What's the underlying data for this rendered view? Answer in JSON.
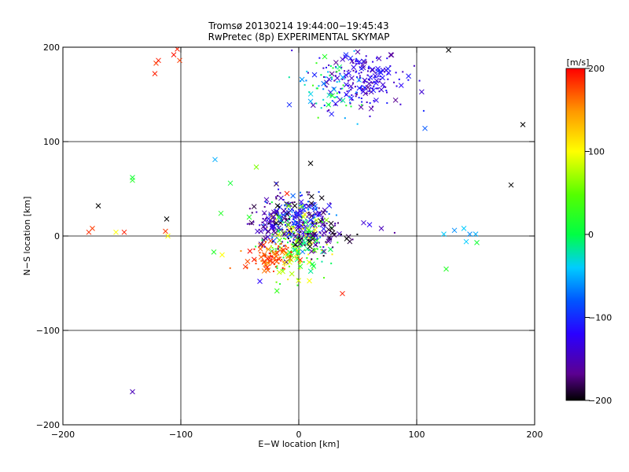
{
  "chart_data": {
    "type": "scatter",
    "title": "Tromsø 20130214 19:44:00−19:45:43",
    "subtitle": "RwPretec (8p) EXPERIMENTAL SKYMAP",
    "xlabel": "E−W location [km]",
    "ylabel": "N−S location [km]",
    "xlim": [
      -200,
      200
    ],
    "ylim": [
      -200,
      200
    ],
    "xticks": [
      -200,
      -100,
      0,
      100,
      200
    ],
    "yticks": [
      -200,
      -100,
      0,
      100,
      200
    ],
    "xtick_labels": [
      "−200",
      "−100",
      "0",
      "100",
      "200"
    ],
    "ytick_labels": [
      "−200",
      "−100",
      "0",
      "100",
      "200"
    ],
    "grid": true,
    "colorbar": {
      "label": "[m/s]",
      "range": [
        -200,
        200
      ],
      "ticks": [
        200,
        100,
        0,
        -100,
        -200
      ],
      "tick_labels": [
        "200",
        "100",
        "0",
        "−100",
        "−200"
      ],
      "colormap_stops": [
        "#000000",
        "#6a00a8",
        "#2a00ff",
        "#0066ff",
        "#00d6ff",
        "#00ff66",
        "#22ff00",
        "#ffff00",
        "#ff9900",
        "#ff0000"
      ]
    },
    "marker_legend": "x = large markers, · = small markers",
    "points": [
      {
        "x": -175,
        "y": 8,
        "v": 180,
        "m": "x"
      },
      {
        "x": -178,
        "y": 4,
        "v": 185,
        "m": "x"
      },
      {
        "x": -170,
        "y": 32,
        "v": -200,
        "m": "x"
      },
      {
        "x": -155,
        "y": 4,
        "v": 100,
        "m": "x"
      },
      {
        "x": -148,
        "y": 4,
        "v": 190,
        "m": "x"
      },
      {
        "x": -141,
        "y": 62,
        "v": 10,
        "m": "x"
      },
      {
        "x": -141,
        "y": 59,
        "v": 20,
        "m": "x"
      },
      {
        "x": -112,
        "y": 18,
        "v": -200,
        "m": "x"
      },
      {
        "x": -113,
        "y": 5,
        "v": 180,
        "m": "x"
      },
      {
        "x": -111,
        "y": 0,
        "v": 100,
        "m": "x"
      },
      {
        "x": -141,
        "y": -165,
        "v": -150,
        "m": "x"
      },
      {
        "x": -121,
        "y": 183,
        "v": 180,
        "m": "x"
      },
      {
        "x": -122,
        "y": 172,
        "v": 190,
        "m": "x"
      },
      {
        "x": -119,
        "y": 186,
        "v": 190,
        "m": "x"
      },
      {
        "x": -106,
        "y": 192,
        "v": 195,
        "m": "x"
      },
      {
        "x": -101,
        "y": 186,
        "v": 180,
        "m": "x"
      },
      {
        "x": -103,
        "y": 198,
        "v": 190,
        "m": "x"
      },
      {
        "x": -71,
        "y": 81,
        "v": -50,
        "m": "x"
      },
      {
        "x": -66,
        "y": 24,
        "v": 20,
        "m": "x"
      },
      {
        "x": -58,
        "y": 56,
        "v": 10,
        "m": "x"
      },
      {
        "x": -72,
        "y": -17,
        "v": 20,
        "m": "x"
      },
      {
        "x": -65,
        "y": -20,
        "v": 100,
        "m": "x"
      },
      {
        "x": -36,
        "y": 73,
        "v": 60,
        "m": "x"
      },
      {
        "x": -33,
        "y": -48,
        "v": -120,
        "m": "x"
      },
      {
        "x": 40,
        "y": 192,
        "v": -100,
        "m": "x"
      },
      {
        "x": 22,
        "y": 190,
        "v": 20,
        "m": "x"
      },
      {
        "x": 50,
        "y": 195,
        "v": -160,
        "m": "x"
      },
      {
        "x": 68,
        "y": 188,
        "v": -150,
        "m": "x"
      },
      {
        "x": 78,
        "y": 192,
        "v": -160,
        "m": "x"
      },
      {
        "x": 56,
        "y": 165,
        "v": -140,
        "m": "x"
      },
      {
        "x": 70,
        "y": 155,
        "v": -140,
        "m": "x"
      },
      {
        "x": -8,
        "y": 139,
        "v": -100,
        "m": "x"
      },
      {
        "x": 107,
        "y": 114,
        "v": -80,
        "m": "x"
      },
      {
        "x": 127,
        "y": 197,
        "v": -200,
        "m": "x"
      },
      {
        "x": 190,
        "y": 118,
        "v": -200,
        "m": "x"
      },
      {
        "x": 180,
        "y": 54,
        "v": -200,
        "m": "x"
      },
      {
        "x": 10,
        "y": 77,
        "v": -200,
        "m": "x"
      },
      {
        "x": 55,
        "y": 14,
        "v": -140,
        "m": "x"
      },
      {
        "x": 60,
        "y": 12,
        "v": -120,
        "m": "x"
      },
      {
        "x": 70,
        "y": 8,
        "v": -150,
        "m": "x"
      },
      {
        "x": 123,
        "y": 2,
        "v": -40,
        "m": "x"
      },
      {
        "x": 132,
        "y": 6,
        "v": -60,
        "m": "x"
      },
      {
        "x": 140,
        "y": 8,
        "v": -40,
        "m": "x"
      },
      {
        "x": 145,
        "y": 2,
        "v": -60,
        "m": "x"
      },
      {
        "x": 150,
        "y": 2,
        "v": -50,
        "m": "x"
      },
      {
        "x": 142,
        "y": -6,
        "v": -40,
        "m": "x"
      },
      {
        "x": 151,
        "y": -7,
        "v": 10,
        "m": "x"
      },
      {
        "x": 125,
        "y": -35,
        "v": 20,
        "m": "x"
      },
      {
        "x": 37,
        "y": -61,
        "v": 190,
        "m": "x"
      },
      {
        "x": -40,
        "y": 14,
        "v": -180,
        "m": "x"
      },
      {
        "x": -30,
        "y": 10,
        "v": -170,
        "m": "x"
      },
      {
        "x": -18,
        "y": 32,
        "v": -200,
        "m": "x"
      },
      {
        "x": 0,
        "y": 22,
        "v": -110,
        "m": "x"
      },
      {
        "x": 10,
        "y": 17,
        "v": -100,
        "m": "x"
      },
      {
        "x": 20,
        "y": 12,
        "v": -150,
        "m": "x"
      },
      {
        "x": 28,
        "y": 8,
        "v": -200,
        "m": "x"
      },
      {
        "x": -10,
        "y": 45,
        "v": 190,
        "m": "x"
      },
      {
        "x": -22,
        "y": -28,
        "v": 180,
        "m": "x"
      },
      {
        "x": -42,
        "y": 20,
        "v": 20,
        "m": "x"
      }
    ],
    "clusters": [
      {
        "cx": -2,
        "cy": 18,
        "sx": 14,
        "sy": 14,
        "n": 260,
        "vmin": -200,
        "vmax": -60
      },
      {
        "cx": -2,
        "cy": -10,
        "sx": 14,
        "sy": 16,
        "n": 180,
        "vmin": -20,
        "vmax": 120
      },
      {
        "cx": -25,
        "cy": -22,
        "sx": 10,
        "sy": 8,
        "n": 90,
        "vmin": 150,
        "vmax": 200
      },
      {
        "cx": 55,
        "cy": 165,
        "sx": 18,
        "sy": 15,
        "n": 190,
        "vmin": -170,
        "vmax": -100
      },
      {
        "cx": 28,
        "cy": 155,
        "sx": 12,
        "sy": 15,
        "n": 60,
        "vmin": -80,
        "vmax": 40
      },
      {
        "cx": 10,
        "cy": 0,
        "sx": 20,
        "sy": 10,
        "n": 70,
        "vmin": -200,
        "vmax": -150
      },
      {
        "cx": -30,
        "cy": 15,
        "sx": 10,
        "sy": 8,
        "n": 40,
        "vmin": -180,
        "vmax": -120
      }
    ]
  }
}
